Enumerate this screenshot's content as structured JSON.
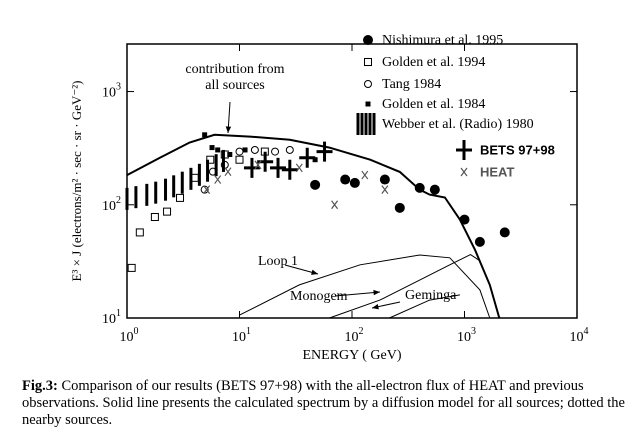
{
  "chart_data": {
    "type": "scatter",
    "x_label": "ENERGY ( GeV)",
    "y_label": "E³ × J (electrons/m² · sec · sr · GeV⁻²)",
    "log_x": true,
    "log_y": true,
    "xlim": [
      1,
      10000
    ],
    "ylim": [
      10,
      2630
    ],
    "xticks": [
      {
        "value": 1,
        "label": "10",
        "sup": "0"
      },
      {
        "value": 10,
        "label": "10",
        "sup": "1"
      },
      {
        "value": 100,
        "label": "10",
        "sup": "2"
      },
      {
        "value": 1000,
        "label": "10",
        "sup": "3"
      },
      {
        "value": 10000,
        "label": "10",
        "sup": "4"
      }
    ],
    "yticks": [
      {
        "value": 10,
        "label": "10",
        "sup": "1"
      },
      {
        "value": 100,
        "label": "10",
        "sup": "2"
      },
      {
        "value": 1000,
        "label": "10",
        "sup": "3"
      }
    ],
    "series": [
      {
        "name": "Nishimura et al. 1995",
        "marker": "filled-circle",
        "color": "#000000",
        "x": [
          47,
          87,
          106,
          196,
          266,
          400,
          545,
          1000,
          1370,
          2280
        ],
        "values": [
          150,
          167,
          156,
          167,
          94,
          141,
          136,
          74,
          47,
          57
        ]
      },
      {
        "name": "Golden et al. 1994",
        "marker": "open-square",
        "color": "#000000",
        "x": [
          1.1,
          1.3,
          1.77,
          2.27,
          2.96,
          4.0,
          5.5,
          7.4,
          10,
          16.8
        ],
        "values": [
          27.7,
          57,
          78,
          87,
          115,
          173,
          250,
          278,
          250,
          295
        ]
      },
      {
        "name": "Tang 1984",
        "marker": "open-circle",
        "color": "#000000",
        "x": [
          4.9,
          5.8,
          7.4,
          10,
          13.7,
          20.7,
          28
        ],
        "values": [
          136,
          196,
          225,
          295,
          305,
          295,
          305
        ]
      },
      {
        "name": "Golden et al. 1984",
        "marker": "filled-square",
        "color": "#000000",
        "x": [
          4.9,
          5.7,
          6.4,
          8.2,
          11.2,
          47
        ],
        "values": [
          415,
          320,
          305,
          278,
          305,
          250
        ]
      },
      {
        "name": "Webber et al. (Radio) 1980",
        "marker": "hatch",
        "color": "#000000",
        "x": [
          1,
          1.2,
          1.5,
          1.8,
          2.2,
          2.6,
          3.1,
          3.7,
          4.4,
          5.2,
          6.2,
          7.2
        ],
        "values": [
          141,
          146,
          153,
          160,
          170,
          182,
          196,
          212,
          230,
          250,
          280,
          305
        ]
      },
      {
        "name": "BETS 97+98",
        "marker": "cross",
        "color": "#000000",
        "x": [
          12.9,
          16.9,
          22,
          28,
          40,
          57
        ],
        "values": [
          212,
          240,
          212,
          204,
          260,
          295
        ]
      },
      {
        "name": "HEAT",
        "marker": "x",
        "color": "#555555",
        "x": [
          5.1,
          6.4,
          7.9,
          14.6,
          34,
          70,
          130,
          196
        ],
        "values": [
          136,
          167,
          196,
          225,
          212,
          100,
          183,
          136
        ]
      }
    ],
    "lines": [
      {
        "label": [
          "contribution from",
          "all sources"
        ],
        "width": 2,
        "x": [
          1,
          1.96,
          3.6,
          6.0,
          12.4,
          28,
          63,
          145,
          266,
          400,
          490,
          670,
          910,
          1240,
          1680,
          2040
        ],
        "values": [
          183,
          260,
          355,
          415,
          400,
          375,
          320,
          250,
          195,
          136,
          123,
          116,
          74,
          40,
          19.6,
          10
        ]
      },
      {
        "label": [
          "Loop 1"
        ],
        "width": 1,
        "x": [
          10,
          34,
          118,
          400,
          740,
          1370,
          1680
        ],
        "values": [
          10.6,
          19.6,
          29.5,
          36,
          34,
          17.7,
          10
        ]
      },
      {
        "label": [
          "Monogem"
        ],
        "width": 1,
        "x": [
          63,
          177,
          400,
          740,
          1130,
          1370
        ],
        "values": [
          10,
          14.4,
          21.6,
          29.5,
          36.3,
          32
        ]
      },
      {
        "label": [
          "Geminga"
        ],
        "width": 1,
        "x": [
          215,
          490,
          910
        ],
        "values": [
          10,
          14.4,
          16
        ]
      }
    ]
  },
  "caption": {
    "label": "Fig.3:",
    "text": "Comparison of our results (BETS 97+98) with the all-electron flux of HEAT and previous observations. Solid line presents the calculated spectrum by a diffusion model for all sources; dotted the nearby sources."
  }
}
